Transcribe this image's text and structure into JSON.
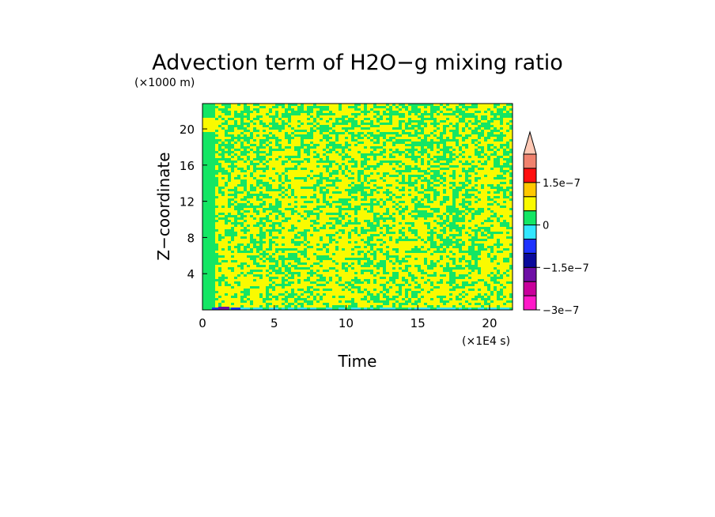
{
  "chart_data": {
    "type": "heatmap",
    "title": "Advection term of H2O−g mixing ratio",
    "xlabel": "Time",
    "ylabel": "Z−coordinate",
    "x_unit": "(×1E4 s)",
    "y_unit": "(×1000 m)",
    "xlim": [
      0,
      21.6
    ],
    "ylim": [
      0,
      22.8
    ],
    "x_ticks": [
      0,
      5,
      10,
      15,
      20
    ],
    "y_ticks": [
      4,
      8,
      12,
      16,
      20
    ],
    "x_tick_labels": [
      "0",
      "5",
      "10",
      "15",
      "20"
    ],
    "y_tick_labels": [
      "4",
      "8",
      "12",
      "16",
      "20"
    ],
    "colorbar": {
      "colors": [
        "#ff19c8",
        "#c8009b",
        "#6e0fa5",
        "#0a0a9b",
        "#1e32ff",
        "#32e6ff",
        "#14e664",
        "#fafa00",
        "#ffc800",
        "#ff0f0f",
        "#f0826e",
        "#ffc8b4"
      ],
      "labels": [
        "1.5e−7",
        "0",
        "−1.5e−7",
        "−3e−7"
      ],
      "label_values": [
        1.5e-07,
        0,
        -1.5e-07,
        -3e-07
      ]
    },
    "dominant_fields": [
      {
        "name": "0 to 5e-8",
        "color": "#fafa00"
      },
      {
        "name": "-5e-8 to 0",
        "color": "#14e664"
      }
    ]
  }
}
